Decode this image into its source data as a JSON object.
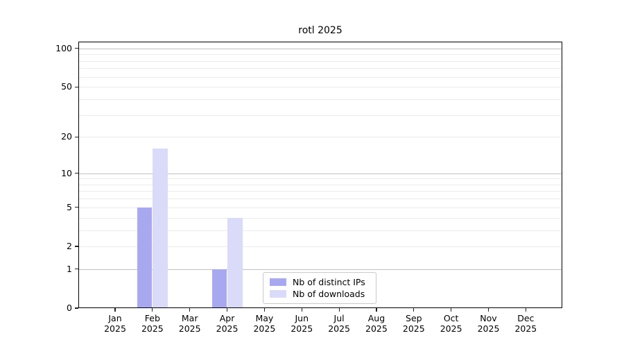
{
  "chart_data": {
    "type": "bar",
    "title": "rotl 2025",
    "categories": [
      "Jan",
      "Feb",
      "Mar",
      "Apr",
      "May",
      "Jun",
      "Jul",
      "Aug",
      "Sep",
      "Oct",
      "Nov",
      "Dec"
    ],
    "year": "2025",
    "series": [
      {
        "name": "Nb of distinct IPs",
        "color": "#a8a8f1",
        "values": [
          0,
          5,
          0,
          1,
          0,
          0,
          0,
          0,
          0,
          0,
          0,
          0
        ]
      },
      {
        "name": "Nb of downloads",
        "color": "#dadaf9",
        "values": [
          0,
          16,
          0,
          4,
          0,
          0,
          0,
          0,
          0,
          0,
          0,
          0
        ]
      }
    ],
    "yscale": "log1p",
    "ylim": [
      0,
      113
    ],
    "ytick_values": [
      0,
      1,
      2,
      5,
      10,
      20,
      50,
      100
    ],
    "ytick_labels": [
      "0",
      "1",
      "2",
      "5",
      "10",
      "20",
      "50",
      "100"
    ],
    "y_major_gridlines": [
      1,
      10,
      100
    ],
    "y_minor_gridlines": [
      2,
      3,
      4,
      5,
      6,
      7,
      8,
      9,
      20,
      30,
      40,
      50,
      60,
      70,
      80,
      90
    ],
    "grid": true,
    "legend_position": "bottom-center-inside",
    "colors": {
      "major_grid": "#c0c0c0",
      "minor_grid": "#ebebeb",
      "axis": "#000000",
      "background": "#ffffff"
    }
  }
}
